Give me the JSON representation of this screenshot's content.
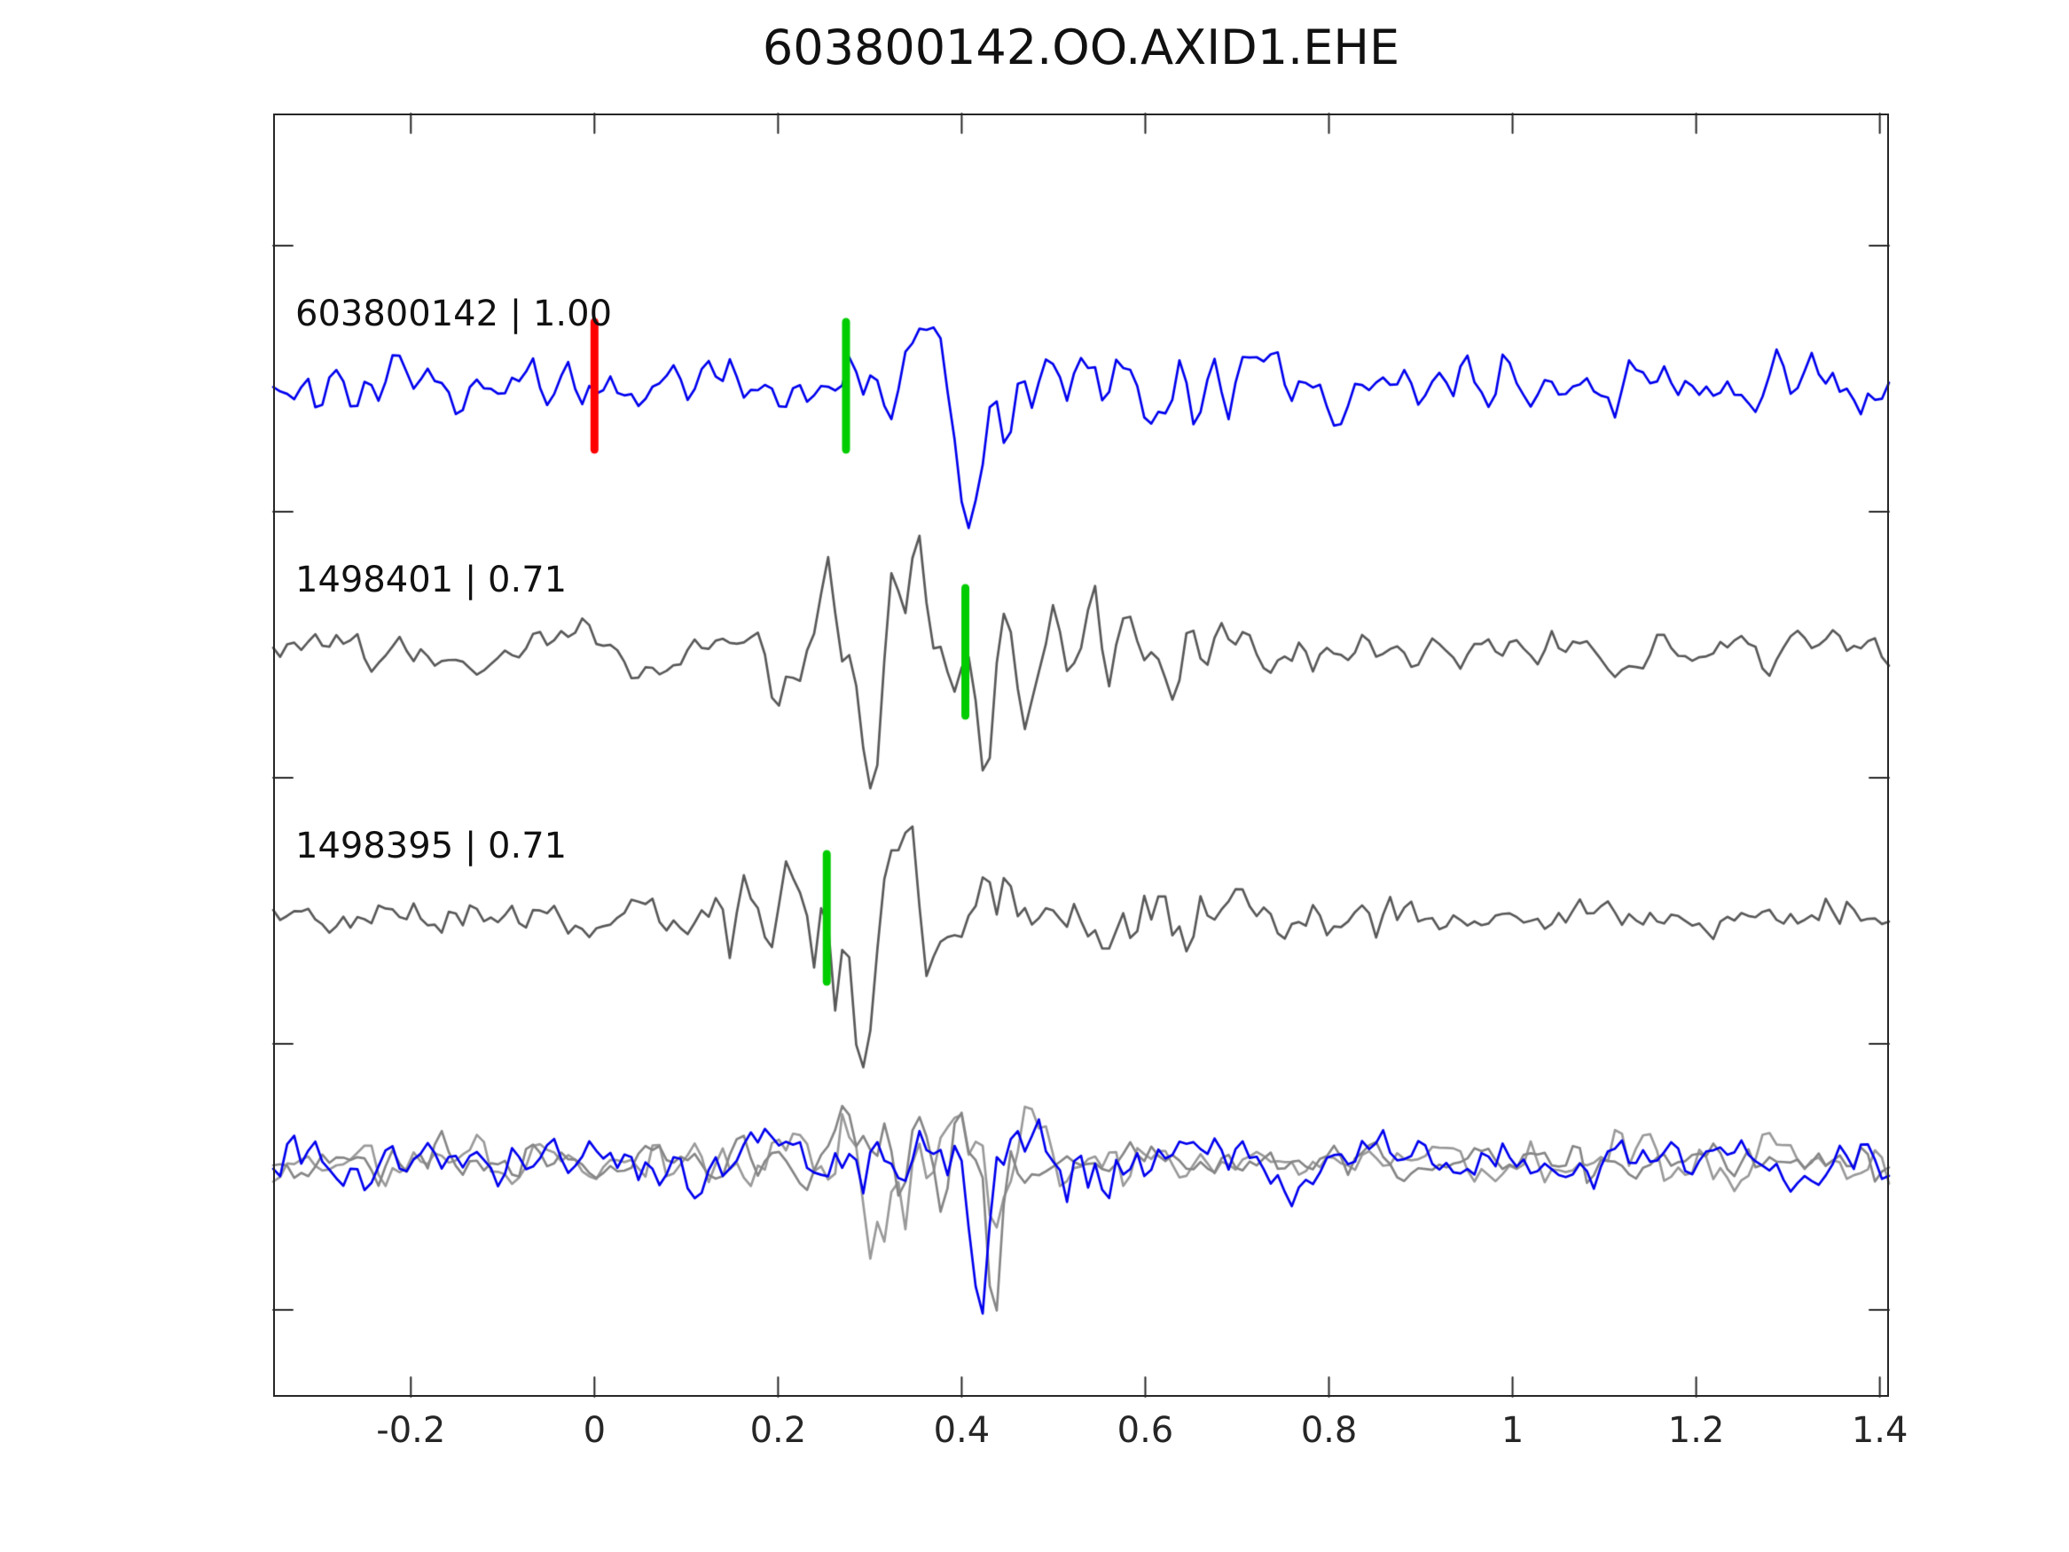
{
  "title": "603800142.OO.AXID1.EHE",
  "chart_data": {
    "type": "line",
    "title": "603800142.OO.AXID1.EHE",
    "xlabel": "",
    "ylabel": "",
    "grid": false,
    "legend": "none",
    "xlim": [
      -0.35,
      1.41
    ],
    "x_tick_values": [
      -0.2,
      0,
      0.2,
      0.4,
      0.6,
      0.8,
      1,
      1.2,
      1.4
    ],
    "x_tick_labels": [
      "-0.2",
      "0",
      "0.2",
      "0.4",
      "0.6",
      "0.8",
      "1",
      "1.2",
      "1.4"
    ],
    "colors": {
      "reference_trace": "#0000ee",
      "match_trace": "#595959",
      "overlay_gray_1": "#9a9a9a",
      "overlay_gray_2": "#868686",
      "pick_marker_red": "#ff0000",
      "pick_marker_green": "#00cc00",
      "axis": "#262626"
    },
    "traces": [
      {
        "name": "603800142",
        "score": "1.00",
        "label": "603800142 | 1.00",
        "color": "#0000ee",
        "row": 0,
        "seed": 11,
        "base_amp": 15,
        "bumps": [
          {
            "center": 0.45,
            "width": 0.28,
            "amp": 7
          }
        ],
        "pulses": [
          {
            "center": 0.352,
            "width": 0.016,
            "amp": 65
          },
          {
            "center": 0.408,
            "width": 0.018,
            "amp": -150
          }
        ],
        "markers": [
          {
            "x": 0.0,
            "color": "#ff0000"
          },
          {
            "x": 0.274,
            "color": "#00cc00"
          }
        ]
      },
      {
        "name": "1498401",
        "score": "0.71",
        "label": "1498401 | 0.71",
        "color": "#595959",
        "row": 1,
        "seed": 22,
        "base_amp": 14,
        "bumps": [
          {
            "center": 0.33,
            "width": 0.14,
            "amp": 36
          },
          {
            "center": 0.56,
            "width": 0.12,
            "amp": 26
          }
        ],
        "pulses": [
          {
            "center": 0.297,
            "width": 0.014,
            "amp": -115
          },
          {
            "center": 0.352,
            "width": 0.018,
            "amp": 85
          },
          {
            "center": 0.425,
            "width": 0.013,
            "amp": -95
          }
        ],
        "markers": [
          {
            "x": 0.404,
            "color": "#00cc00"
          }
        ]
      },
      {
        "name": "1498395",
        "score": "0.71",
        "label": "1498395 | 0.71",
        "color": "#595959",
        "row": 2,
        "seed": 33,
        "base_amp": 9,
        "bumps": [
          {
            "center": 0.18,
            "width": 0.12,
            "amp": 10
          },
          {
            "center": 0.3,
            "width": 0.1,
            "amp": 42
          },
          {
            "center": 0.6,
            "width": 0.22,
            "amp": 9
          }
        ],
        "pulses": [
          {
            "center": 0.292,
            "width": 0.013,
            "amp": -150
          },
          {
            "center": 0.338,
            "width": 0.018,
            "amp": 85
          }
        ],
        "markers": [
          {
            "x": 0.253,
            "color": "#00cc00"
          }
        ]
      },
      {
        "name": "overlay-gray-1",
        "score": "",
        "label": "",
        "color": "#9a9a9a",
        "row": 3,
        "seed": 44,
        "base_amp": 13,
        "bumps": [
          {
            "center": 0.33,
            "width": 0.13,
            "amp": 38
          }
        ],
        "pulses": [
          {
            "center": 0.3,
            "width": 0.013,
            "amp": -145
          },
          {
            "center": 0.35,
            "width": 0.018,
            "amp": 80
          }
        ],
        "markers": []
      },
      {
        "name": "overlay-gray-2",
        "score": "",
        "label": "",
        "color": "#868686",
        "row": 3,
        "seed": 55,
        "base_amp": 13,
        "bumps": [
          {
            "center": 0.37,
            "width": 0.12,
            "amp": 34
          }
        ],
        "pulses": [
          {
            "center": 0.432,
            "width": 0.014,
            "amp": -115
          },
          {
            "center": 0.27,
            "width": 0.016,
            "amp": 68
          }
        ],
        "markers": []
      },
      {
        "name": "overlay-blue",
        "score": "",
        "label": "",
        "color": "#0000ee",
        "row": 3,
        "seed": 66,
        "base_amp": 15,
        "bumps": [
          {
            "center": 0.45,
            "width": 0.25,
            "amp": 8
          }
        ],
        "pulses": [
          {
            "center": 0.418,
            "width": 0.013,
            "amp": -165
          },
          {
            "center": 0.36,
            "width": 0.015,
            "amp": 55
          }
        ],
        "markers": []
      }
    ]
  }
}
